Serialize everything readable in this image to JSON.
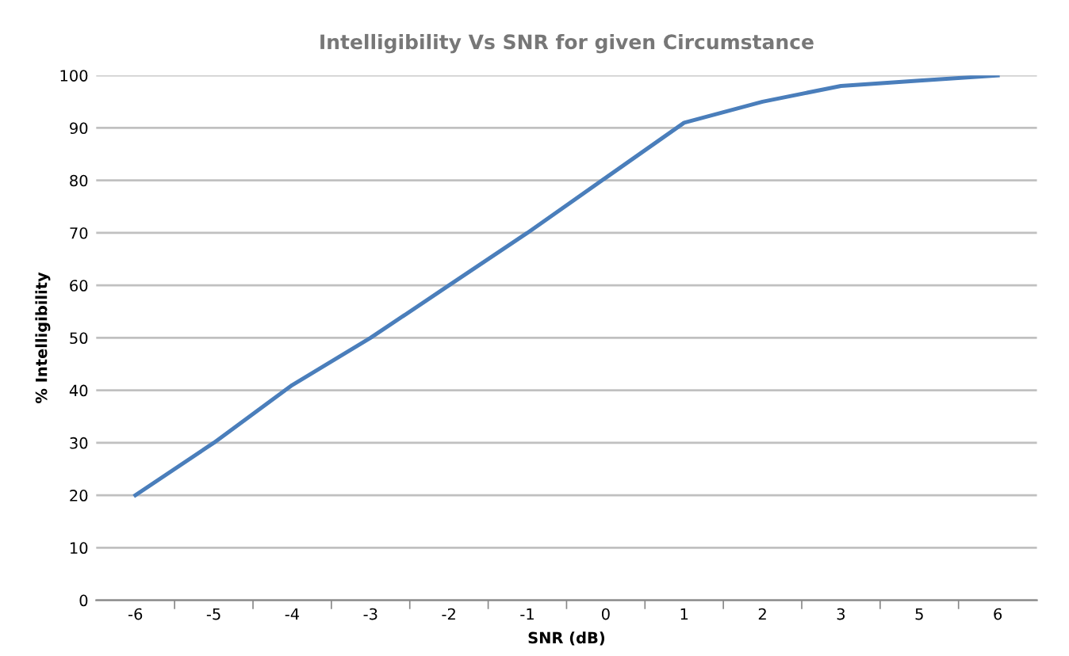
{
  "chart_data": {
    "type": "line",
    "title": "Intelligibility Vs SNR for given Circumstance",
    "xlabel": "SNR (dB)",
    "ylabel": "% Intelligibility",
    "categories": [
      "-6",
      "-5",
      "-4",
      "-3",
      "-2",
      "-1",
      "0",
      "1",
      "2",
      "3",
      "5",
      "6"
    ],
    "series": [
      {
        "color": "#4a7ebb",
        "values": [
          20,
          30,
          41,
          50,
          60,
          70,
          80.5,
          91,
          95,
          98,
          99,
          100
        ]
      }
    ],
    "ylim": [
      0,
      100
    ],
    "yticks": [
      0,
      10,
      20,
      30,
      40,
      50,
      60,
      70,
      80,
      90,
      100
    ],
    "grid": "y",
    "legend": false,
    "marker": "none",
    "line_style": "solid"
  }
}
